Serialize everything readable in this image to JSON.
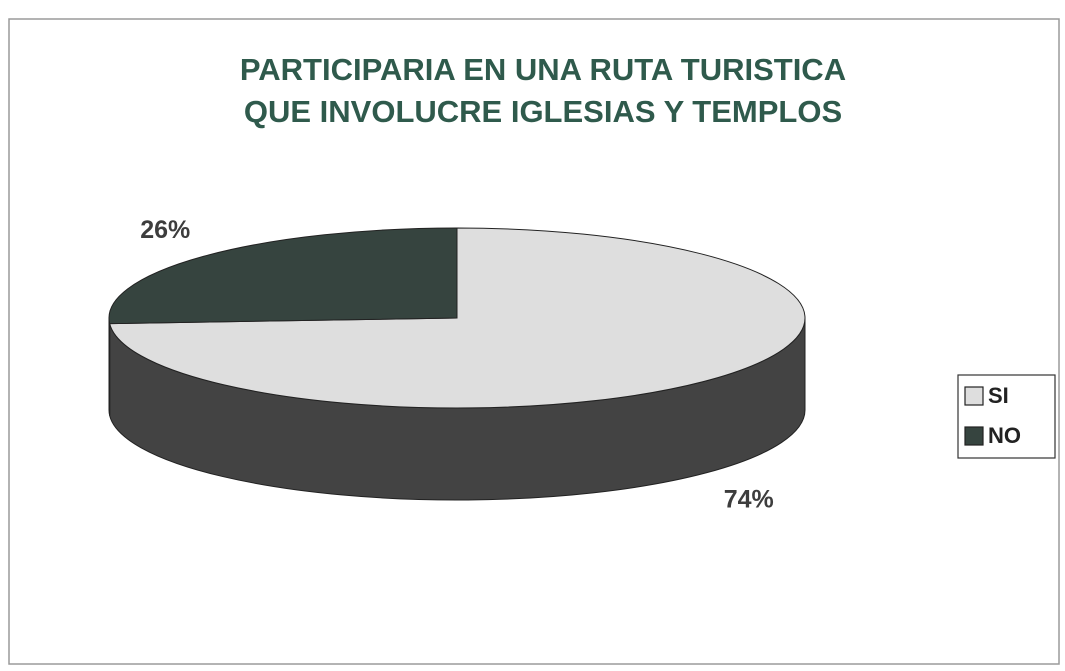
{
  "chart_data": {
    "type": "pie",
    "title": [
      "PARTICIPARIA EN UNA RUTA TURISTICA",
      "QUE INVOLUCRE IGLESIAS Y TEMPLOS"
    ],
    "categories": [
      "SI",
      "NO"
    ],
    "values": [
      74,
      26
    ],
    "value_labels": [
      "74%",
      "26%"
    ],
    "colors": [
      "#dedede",
      "#36443f"
    ],
    "legend": "right"
  }
}
